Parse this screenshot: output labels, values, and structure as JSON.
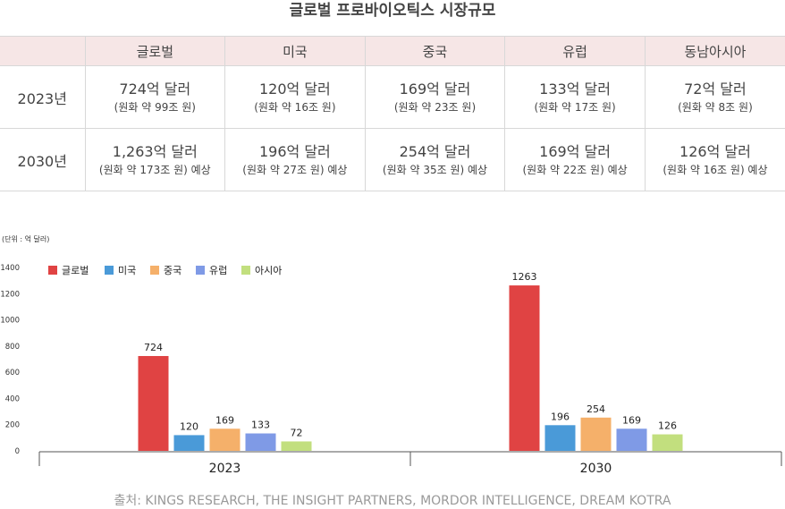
{
  "title": "글로벌 프로바이오틱스 시장규모",
  "table": {
    "columns": [
      "글로벌",
      "미국",
      "중국",
      "유럽",
      "동남아시아"
    ],
    "rows": [
      {
        "year": "2023년",
        "cells": [
          {
            "amount": "724억 달러",
            "krw": "(원화 약 99조 원)"
          },
          {
            "amount": "120억 달러",
            "krw": "(원화 약 16조 원)"
          },
          {
            "amount": "169억 달러",
            "krw": "(원화 약 23조 원)"
          },
          {
            "amount": "133억 달러",
            "krw": "(원화 약 17조 원)"
          },
          {
            "amount": "72억 달러",
            "krw": "(원화 약 8조 원)"
          }
        ]
      },
      {
        "year": "2030년",
        "cells": [
          {
            "amount": "1,263억 달러",
            "krw": "(원화 약 173조 원) 예상"
          },
          {
            "amount": "196억 달러",
            "krw": "(원화 약 27조 원) 예상"
          },
          {
            "amount": "254억 달러",
            "krw": "(원화 약 35조 원) 예상"
          },
          {
            "amount": "169억 달러",
            "krw": "(원화 약 22조 원) 예상"
          },
          {
            "amount": "126억 달러",
            "krw": "(원화 약 16조 원) 예상"
          }
        ]
      }
    ]
  },
  "chart_data": {
    "type": "bar",
    "unit_label": "(단위 : 억 달러)",
    "categories": [
      "2023",
      "2030"
    ],
    "series": [
      {
        "name": "글로벌",
        "color": "#e04343",
        "values": [
          724,
          1263
        ]
      },
      {
        "name": "미국",
        "color": "#4a9ad8",
        "values": [
          120,
          196
        ]
      },
      {
        "name": "중국",
        "color": "#f5b06a",
        "values": [
          169,
          254
        ]
      },
      {
        "name": "유럽",
        "color": "#7f9ae6",
        "values": [
          133,
          169
        ]
      },
      {
        "name": "아시아",
        "color": "#c2df7e",
        "values": [
          72,
          126
        ]
      }
    ],
    "y_ticks": [
      "0",
      "200",
      "400",
      "600",
      "800",
      "1000",
      "1200",
      "1400"
    ],
    "ylim": [
      0,
      1400
    ],
    "legend_position": "top-left"
  },
  "source": "출처: KINGS RESEARCH, THE INSIGHT PARTNERS, MORDOR INTELLIGENCE, DREAM KOTRA"
}
